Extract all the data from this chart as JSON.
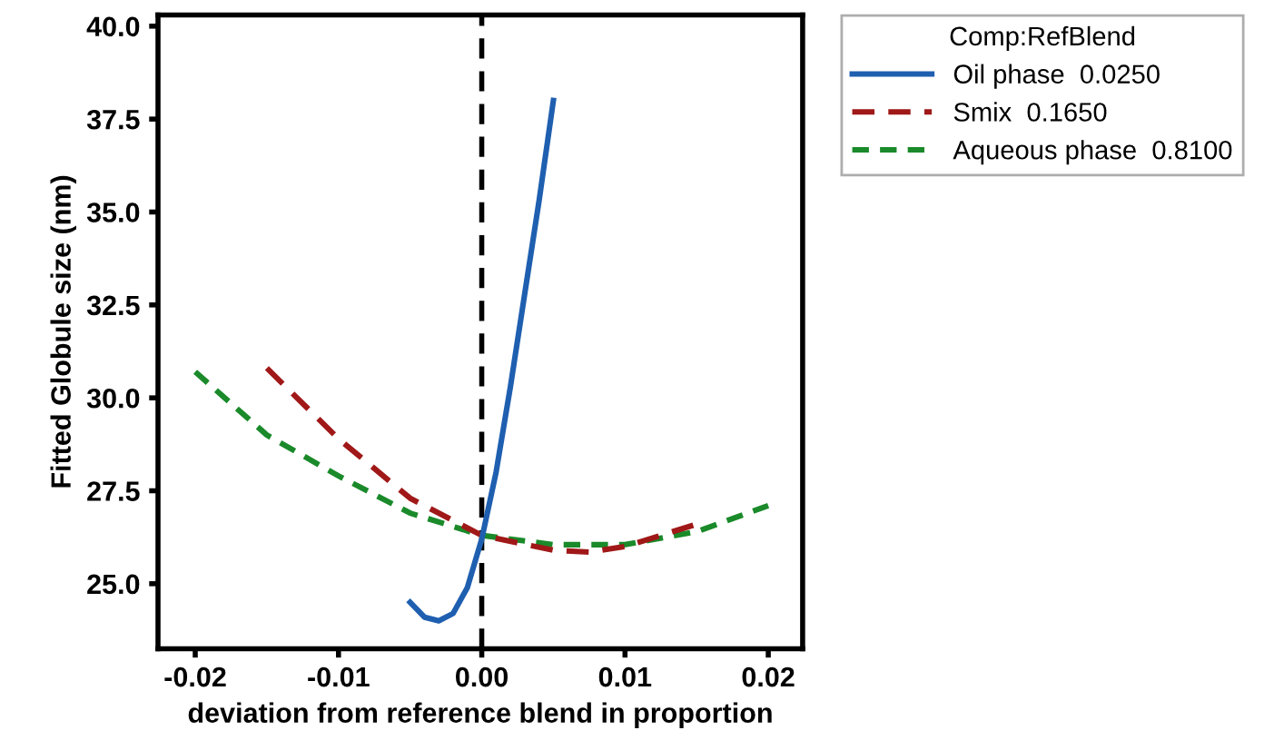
{
  "chart_data": {
    "type": "line",
    "xlabel": "deviation from reference blend in proportion",
    "ylabel": "Fitted Globule size (nm)",
    "legend_title": "Comp:RefBlend",
    "legend": "top right",
    "xlim": [
      -0.0226,
      0.0224
    ],
    "ylim": [
      23.25,
      40.3
    ],
    "xticks": [
      {
        "value": -0.02,
        "label": "-0.02"
      },
      {
        "value": -0.01,
        "label": "-0.01"
      },
      {
        "value": 0,
        "label": "0.00"
      },
      {
        "value": 0.01,
        "label": "0.01"
      },
      {
        "value": 0.02,
        "label": "0.02"
      }
    ],
    "yticks": [
      {
        "value": 25,
        "label": "25.0"
      },
      27.5,
      {
        "value": 30,
        "label": "30.0"
      },
      32.5,
      {
        "value": 35,
        "label": "35.0"
      },
      37.5,
      {
        "value": 40,
        "label": "40.0"
      }
    ],
    "grid": false,
    "ref_lines": [
      {
        "axis": "x",
        "value": 0,
        "color": "#000000",
        "line_style": "dashed"
      }
    ],
    "series": [
      {
        "name": "Oil phase  0.0250",
        "color": "#1f5fb0",
        "line_style": "solid",
        "x": [
          -0.005,
          -0.004,
          -0.003,
          -0.002,
          -0.001,
          0,
          0.001,
          0.002,
          0.003,
          0.004,
          0.005
        ],
        "values": [
          24.5,
          24.1,
          24.0,
          24.2,
          24.9,
          26.2,
          28.0,
          30.3,
          32.8,
          35.3,
          38.0
        ]
      },
      {
        "name": "Smix  0.1650",
        "color": "#a01818",
        "line_style": "dashed",
        "x": [
          -0.015,
          -0.01,
          -0.005,
          0,
          0.005,
          0.0075,
          0.01,
          0.015
        ],
        "values": [
          30.8,
          28.9,
          27.3,
          26.3,
          25.9,
          25.85,
          26.0,
          26.6
        ]
      },
      {
        "name": "Aqueous phase  0.8100",
        "color": "#1a8a2a",
        "line_style": "dotted",
        "x": [
          -0.02,
          -0.015,
          -0.01,
          -0.005,
          0,
          0.005,
          0.01,
          0.015,
          0.02
        ],
        "values": [
          30.7,
          29.0,
          27.9,
          26.9,
          26.3,
          26.05,
          26.05,
          26.4,
          27.1
        ]
      }
    ]
  }
}
